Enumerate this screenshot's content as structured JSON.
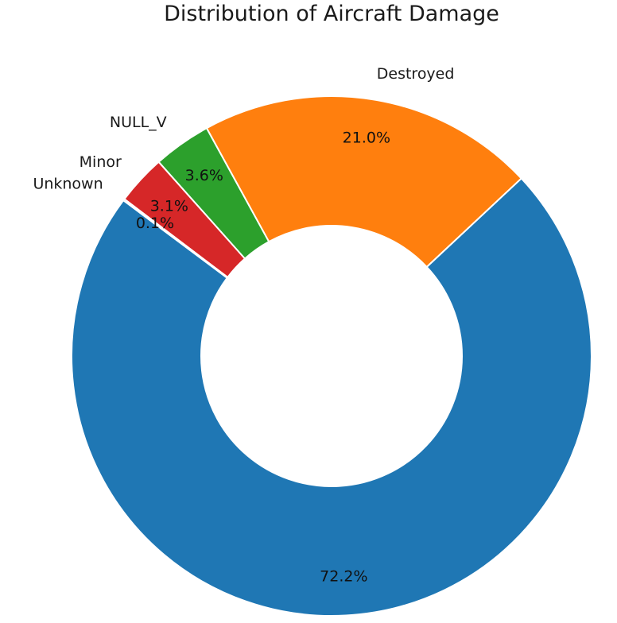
{
  "chart_data": {
    "type": "pie",
    "style": "donut",
    "title": "Distribution of Aircraft Damage",
    "slices": [
      {
        "label": "",
        "value": 72.2,
        "pct_label": "72.2%",
        "color": "#1f77b4"
      },
      {
        "label": "Destroyed",
        "value": 21.0,
        "pct_label": "21.0%",
        "color": "#ff7f0e"
      },
      {
        "label": "NULL_V",
        "value": 3.6,
        "pct_label": "3.6%",
        "color": "#2ca02c"
      },
      {
        "label": "Minor",
        "value": 3.1,
        "pct_label": "3.1%",
        "color": "#d62728"
      },
      {
        "label": "Unknown",
        "value": 0.1,
        "pct_label": "0.1%",
        "color": "#9467bd"
      }
    ],
    "direction": "counterclockwise",
    "legend": "none",
    "slice_edge_color": "#ffffff"
  }
}
